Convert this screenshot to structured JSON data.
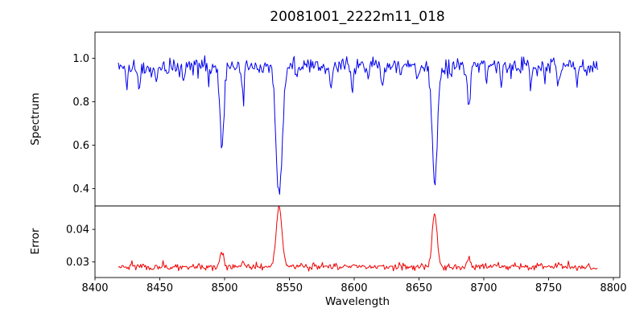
{
  "chart_data": {
    "type": "line",
    "title": "20081001_2222m11_018",
    "xlabel": "Wavelength",
    "xlim": [
      8400,
      8805
    ],
    "xticks": [
      8400,
      8450,
      8500,
      8550,
      8600,
      8650,
      8700,
      8750,
      8800
    ],
    "xtick_labels": [
      "8400",
      "8450",
      "8500",
      "8550",
      "8600",
      "8650",
      "8700",
      "8750",
      "8800"
    ],
    "data_x_range": [
      8418,
      8788
    ],
    "grid": false,
    "legend": "none",
    "panels": [
      {
        "name": "spectrum",
        "ylabel": "Spectrum",
        "color": "#0000ee",
        "ylim": [
          0.32,
          1.12
        ],
        "yticks": [
          0.4,
          0.6,
          0.8,
          1.0
        ],
        "ytick_labels": [
          "0.4",
          "0.6",
          "0.8",
          "1.0"
        ],
        "continuum": 0.968,
        "noise_sd": 0.019,
        "spike_noise": {
          "probability": 0.07,
          "amplitude": 0.05,
          "direction": -1
        },
        "features": [
          {
            "center": 8424.5,
            "amplitude": -0.1,
            "width": 0.9
          },
          {
            "center": 8434.0,
            "amplitude": -0.115,
            "width": 0.9
          },
          {
            "center": 8447.0,
            "amplitude": -0.065,
            "width": 0.8
          },
          {
            "center": 8456.0,
            "amplitude": -0.05,
            "width": 0.8
          },
          {
            "center": 8468.5,
            "amplitude": -0.1,
            "width": 0.9
          },
          {
            "center": 8488.0,
            "amplitude": -0.06,
            "width": 0.8
          },
          {
            "center": 8498.0,
            "amplitude": -0.375,
            "width": 1.6
          },
          {
            "center": 8514.1,
            "amplitude": -0.135,
            "width": 1.0
          },
          {
            "center": 8526.0,
            "amplitude": -0.05,
            "width": 0.8
          },
          {
            "center": 8542.1,
            "amplitude": -0.6,
            "width": 2.4
          },
          {
            "center": 8556.0,
            "amplitude": -0.05,
            "width": 0.8
          },
          {
            "center": 8582.0,
            "amplitude": -0.095,
            "width": 0.9
          },
          {
            "center": 8598.5,
            "amplitude": -0.11,
            "width": 0.9
          },
          {
            "center": 8611.0,
            "amplitude": -0.06,
            "width": 0.8
          },
          {
            "center": 8621.5,
            "amplitude": -0.1,
            "width": 0.9
          },
          {
            "center": 8636.0,
            "amplitude": -0.05,
            "width": 0.8
          },
          {
            "center": 8648.5,
            "amplitude": -0.08,
            "width": 0.9
          },
          {
            "center": 8662.1,
            "amplitude": -0.555,
            "width": 2.0
          },
          {
            "center": 8674.5,
            "amplitude": -0.065,
            "width": 0.8
          },
          {
            "center": 8688.6,
            "amplitude": -0.215,
            "width": 1.1
          },
          {
            "center": 8702.0,
            "amplitude": -0.06,
            "width": 0.8
          },
          {
            "center": 8713.5,
            "amplitude": -0.095,
            "width": 0.9
          },
          {
            "center": 8727.0,
            "amplitude": -0.05,
            "width": 0.8
          },
          {
            "center": 8736.5,
            "amplitude": -0.085,
            "width": 0.9
          },
          {
            "center": 8747.0,
            "amplitude": -0.05,
            "width": 0.8
          },
          {
            "center": 8757.5,
            "amplitude": -0.09,
            "width": 0.9
          },
          {
            "center": 8772.0,
            "amplitude": -0.075,
            "width": 0.8
          }
        ]
      },
      {
        "name": "error",
        "ylabel": "Error",
        "color": "#ee0000",
        "ylim": [
          0.0252,
          0.0472
        ],
        "yticks": [
          0.03,
          0.04
        ],
        "ytick_labels": [
          "0.03",
          "0.04"
        ],
        "continuum": 0.0285,
        "noise_sd": 0.0005,
        "spike_noise": {
          "probability": 0.05,
          "amplitude": 0.0015,
          "direction": 1
        },
        "features": [
          {
            "center": 8498.0,
            "amplitude": 0.0045,
            "width": 1.5
          },
          {
            "center": 8514.1,
            "amplitude": 0.0013,
            "width": 1.2
          },
          {
            "center": 8542.1,
            "amplitude": 0.0185,
            "width": 2.2
          },
          {
            "center": 8598.5,
            "amplitude": 0.0008,
            "width": 1.0
          },
          {
            "center": 8662.1,
            "amplitude": 0.0168,
            "width": 1.9
          },
          {
            "center": 8688.6,
            "amplitude": 0.0028,
            "width": 1.2
          },
          {
            "center": 8713.5,
            "amplitude": 0.0008,
            "width": 1.0
          },
          {
            "center": 8757.5,
            "amplitude": 0.0009,
            "width": 1.0
          }
        ]
      }
    ]
  }
}
